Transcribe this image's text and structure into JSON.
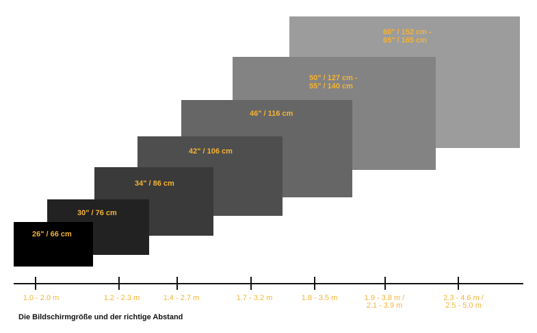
{
  "screens": [
    {
      "label": "60\" / 152 cm -\n65\" / 165 cm",
      "color": "#9c9c9c"
    },
    {
      "label": "50\" / 127 cm -\n55\" / 140 cm",
      "color": "#838383"
    },
    {
      "label": "46\" / 116 cm",
      "color": "#666666"
    },
    {
      "label": "42\" / 106 cm",
      "color": "#4e4e4e"
    },
    {
      "label": "34\" / 86 cm",
      "color": "#3a3a3a"
    },
    {
      "label": "30\" / 76 cm",
      "color": "#222222"
    },
    {
      "label": "26\" / 66 cm",
      "color": "#000000"
    }
  ],
  "distances": [
    "1.0 - 2.0 m",
    "1.2 - 2.3 m",
    "1.4 - 2.7 m",
    "1.7 - 3.2 m",
    "1.8 - 3.5 m",
    "1.9 - 3.8 m /\n2.1 - 3.9 m",
    "2.3 - 4.6 m /\n2.5 - 5.0 m"
  ],
  "caption": "Die Bildschirmgröße und der richtige Abstand",
  "colors": {
    "label": "#f5b335",
    "axis": "#111111"
  }
}
